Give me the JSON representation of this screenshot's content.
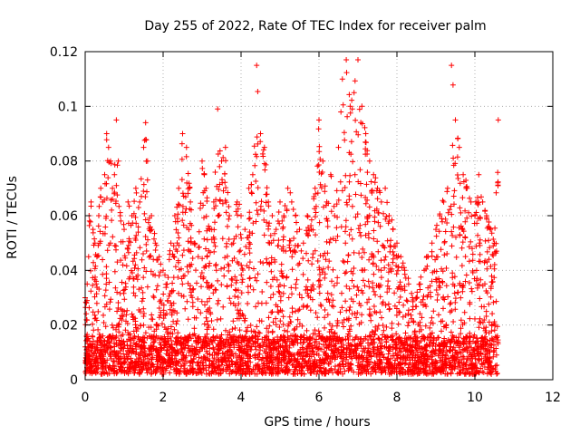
{
  "chart_data": {
    "type": "scatter",
    "title": "Day 255 of 2022, Rate Of TEC Index for receiver palm",
    "xlabel": "GPS time / hours",
    "ylabel": "ROTI / TECUs",
    "xlim": [
      0,
      12
    ],
    "ylim": [
      0,
      0.12
    ],
    "x_ticks": [
      0,
      2,
      4,
      6,
      8,
      10,
      12
    ],
    "x_tick_labels": [
      "0",
      "2",
      "4",
      "6",
      "8",
      "10",
      "12"
    ],
    "y_ticks": [
      0,
      0.02,
      0.04,
      0.06,
      0.08,
      0.1,
      0.12
    ],
    "y_tick_labels": [
      "0",
      "0.02",
      "0.04",
      "0.06",
      "0.08",
      "0.1",
      "0.12"
    ],
    "grid": true,
    "marker": "+",
    "marker_color": "#ff0000",
    "series": [
      {
        "name": "ROTI",
        "note": "dense red '+' markers; representative sample of ~6000 points",
        "x": [
          0.0,
          0.05,
          0.1,
          0.15,
          0.2,
          0.25,
          0.3,
          0.35,
          0.4,
          0.45,
          0.5,
          0.55,
          0.6,
          0.65,
          0.7,
          0.75,
          0.8,
          0.85,
          0.9,
          1.0,
          1.1,
          1.2,
          1.3,
          1.4,
          1.5,
          1.55,
          1.6,
          1.7,
          1.8,
          1.9,
          2.0,
          2.1,
          2.2,
          2.3,
          2.4,
          2.5,
          2.6,
          2.7,
          2.8,
          2.9,
          3.0,
          3.1,
          3.2,
          3.3,
          3.4,
          3.5,
          3.6,
          3.7,
          3.8,
          3.9,
          4.0,
          4.1,
          4.2,
          4.3,
          4.4,
          4.5,
          4.6,
          4.7,
          4.8,
          4.9,
          5.0,
          5.1,
          5.2,
          5.3,
          5.4,
          5.5,
          5.6,
          5.7,
          5.8,
          5.9,
          6.0,
          6.1,
          6.2,
          6.3,
          6.4,
          6.5,
          6.6,
          6.7,
          6.8,
          6.9,
          7.0,
          7.1,
          7.2,
          7.3,
          7.4,
          7.5,
          7.6,
          7.7,
          7.8,
          7.9,
          8.0,
          8.1,
          8.2,
          8.3,
          8.4,
          8.5,
          8.6,
          8.7,
          8.8,
          8.9,
          9.0,
          9.1,
          9.2,
          9.3,
          9.4,
          9.5,
          9.6,
          9.7,
          9.8,
          9.9,
          10.0,
          10.1,
          10.2,
          10.3,
          10.4,
          10.5,
          10.6
        ],
        "y": [
          0.03,
          0.035,
          0.06,
          0.065,
          0.055,
          0.05,
          0.045,
          0.06,
          0.07,
          0.065,
          0.075,
          0.09,
          0.085,
          0.08,
          0.07,
          0.075,
          0.095,
          0.08,
          0.06,
          0.055,
          0.065,
          0.06,
          0.07,
          0.065,
          0.085,
          0.094,
          0.08,
          0.06,
          0.05,
          0.045,
          0.04,
          0.035,
          0.05,
          0.06,
          0.07,
          0.09,
          0.085,
          0.065,
          0.05,
          0.045,
          0.08,
          0.07,
          0.055,
          0.065,
          0.099,
          0.08,
          0.085,
          0.06,
          0.05,
          0.065,
          0.06,
          0.055,
          0.07,
          0.075,
          0.115,
          0.09,
          0.085,
          0.065,
          0.06,
          0.055,
          0.065,
          0.06,
          0.07,
          0.065,
          0.06,
          0.055,
          0.05,
          0.06,
          0.055,
          0.07,
          0.095,
          0.08,
          0.065,
          0.075,
          0.06,
          0.085,
          0.11,
          0.117,
          0.1,
          0.105,
          0.117,
          0.1,
          0.09,
          0.08,
          0.075,
          0.07,
          0.065,
          0.07,
          0.06,
          0.055,
          0.05,
          0.045,
          0.04,
          0.035,
          0.03,
          0.03,
          0.035,
          0.04,
          0.045,
          0.05,
          0.055,
          0.06,
          0.065,
          0.07,
          0.115,
          0.095,
          0.085,
          0.075,
          0.07,
          0.065,
          0.06,
          0.075,
          0.065,
          0.06,
          0.055,
          0.05,
          0.095
        ]
      }
    ]
  }
}
